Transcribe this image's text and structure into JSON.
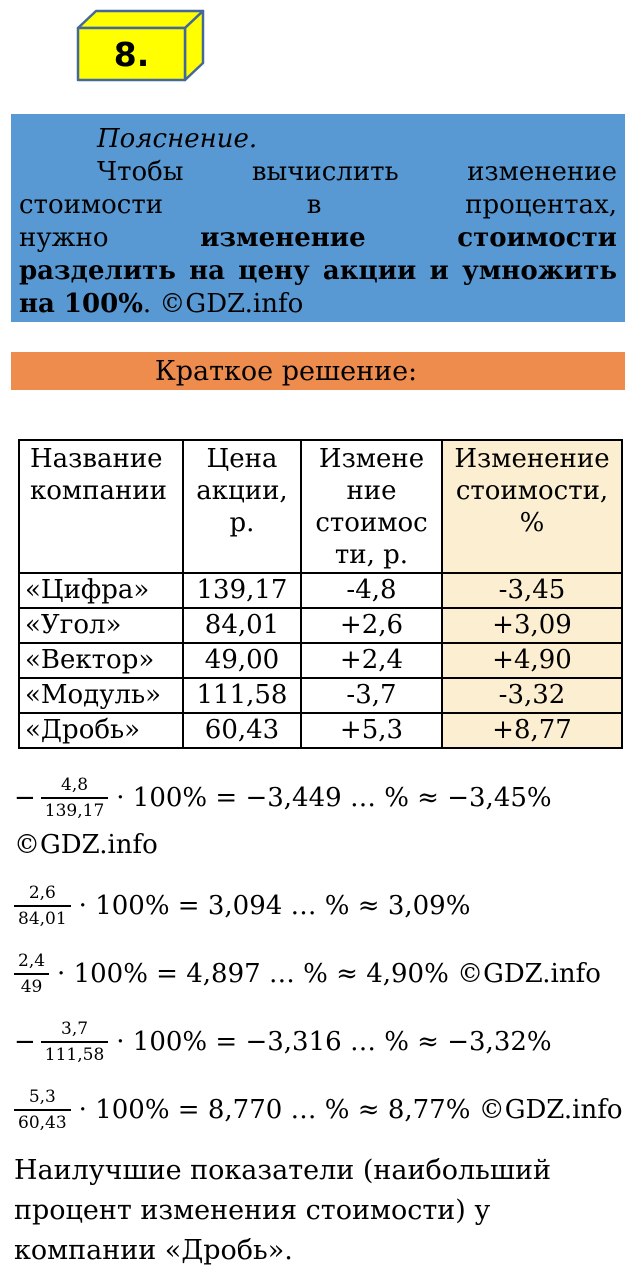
{
  "colors": {
    "blue_block": "#5999D3",
    "orange_bar": "#EE8C4D",
    "table_highlight": "#FCEED0",
    "box_fill": "#FFFF00",
    "box_border": "#45689B"
  },
  "box": {
    "label": "8."
  },
  "explanation": {
    "title": "Пояснение.",
    "lines": [
      {
        "indent": true,
        "justify": true,
        "segments": [
          {
            "t": "Чтобы"
          },
          {
            "t": "вычислить"
          },
          {
            "t": "изменение"
          }
        ]
      },
      {
        "indent": false,
        "justify": true,
        "segments": [
          {
            "t": "стоимости"
          },
          {
            "t": "в"
          },
          {
            "t": "процентах,"
          }
        ]
      },
      {
        "indent": false,
        "justify": true,
        "segments": [
          {
            "t": "нужно"
          },
          {
            "t": "изменение",
            "b": true
          },
          {
            "t": "стоимости",
            "b": true
          }
        ]
      },
      {
        "indent": false,
        "justify": true,
        "segments": [
          {
            "t": "разделить",
            "b": true
          },
          {
            "t": "на",
            "b": true
          },
          {
            "t": "цену",
            "b": true
          },
          {
            "t": "акции",
            "b": true
          },
          {
            "t": "и",
            "b": true
          },
          {
            "t": "умножить",
            "b": true
          }
        ]
      },
      {
        "indent": false,
        "justify": false,
        "segments": [
          {
            "t": "на 100%",
            "b": true
          },
          {
            "t": ". ©GDZ.info"
          }
        ]
      }
    ]
  },
  "section": {
    "title": "Краткое решение:"
  },
  "table": {
    "headers": [
      {
        "lines": [
          "Название",
          "компании"
        ]
      },
      {
        "lines": [
          "Цена",
          "акции,",
          "р."
        ]
      },
      {
        "lines": [
          "Измене",
          "ние",
          "стоимос",
          "ти, р."
        ]
      },
      {
        "lines": [
          "Изменение",
          "стоимости,",
          "%"
        ]
      }
    ],
    "rows": [
      [
        "«Цифра»",
        "139,17",
        "-4,8",
        "-3,45"
      ],
      [
        "«Угол»",
        "84,01",
        "+2,6",
        "+3,09"
      ],
      [
        "«Вектор»",
        "49,00",
        "+2,4",
        "+4,90"
      ],
      [
        "«Модуль»",
        "111,58",
        "-3,7",
        "-3,32"
      ],
      [
        "«Дробь»",
        "60,43",
        "+5,3",
        "+8,77"
      ]
    ]
  },
  "formulas": [
    {
      "minus": true,
      "num": "4,8",
      "den": "139,17",
      "after": "· 100% = −3,449 … % ≈ −3,45%",
      "below": "©GDZ.info"
    },
    {
      "minus": false,
      "num": "2,6",
      "den": "84,01",
      "after": "· 100% = 3,094 … % ≈ 3,09%",
      "below": ""
    },
    {
      "minus": false,
      "num": "2,4",
      "den": "49",
      "after": "· 100% = 4,897 … % ≈ 4,90% ©GDZ.info",
      "below": ""
    },
    {
      "minus": true,
      "num": "3,7",
      "den": "111,58",
      "after": "· 100% = −3,316 … % ≈ −3,32%",
      "below": ""
    },
    {
      "minus": false,
      "num": "5,3",
      "den": "60,43",
      "after": "· 100% = 8,770 … % ≈ 8,77% ©GDZ.info",
      "below": ""
    }
  ],
  "conclusion": {
    "lines": [
      "Наилучшие показатели (наибольший",
      "процент изменения стоимости) у",
      "компании «Дробь»."
    ]
  }
}
